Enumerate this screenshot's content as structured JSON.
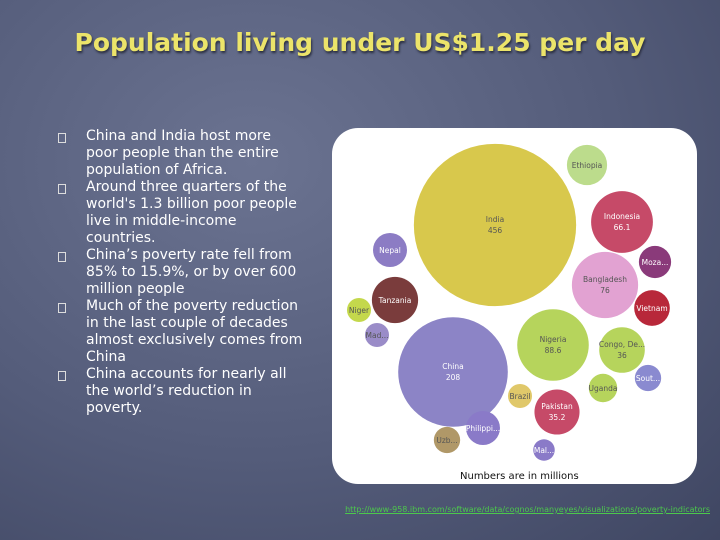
{
  "title": "Population living under US$1.25 per day",
  "bullets": [
    "China and India host more poor people than the entire population of Africa.",
    "Around three quarters of the world's 1.3 billion poor people live in middle-income countries.",
    "China’s poverty rate fell from 85% to 15.9%, or by over 600 million people",
    "Much of the poverty reduction in the last couple of decades almost exclusively comes from China",
    "China accounts for nearly all the world’s reduction in poverty."
  ],
  "chart": {
    "type": "bubble",
    "bubbles": [
      {
        "label": "India",
        "value": 456,
        "color": "#d8c84c"
      },
      {
        "label": "China",
        "value": 208,
        "color": "#8c84c6"
      },
      {
        "label": "Nigeria",
        "value": 88.6,
        "color": "#b6d45c"
      },
      {
        "label": "Bangladesh",
        "value": 76,
        "color": "#e2a2d2"
      },
      {
        "label": "Indonesia",
        "value": 66.1,
        "color": "#c64a68"
      },
      {
        "label": "Congo, De...",
        "value": 36,
        "color": "#b6d45c"
      },
      {
        "label": "Pakistan",
        "value": 35.2,
        "color": "#c64a68"
      }
    ],
    "other_bubbles": [
      {
        "label": "Ethiopia",
        "value": 28,
        "color": "#bcdc8c"
      },
      {
        "label": "Nepal",
        "value": 20,
        "color": "#8c7cc4"
      },
      {
        "label": "Tanzania",
        "value": 37,
        "color": "#7a3c3c"
      },
      {
        "label": "Niger",
        "value": 10,
        "color": "#c4d84c"
      },
      {
        "label": "Mad...",
        "value": 10,
        "color": "#9a8cc8"
      },
      {
        "label": "Vietnam",
        "value": 22,
        "color": "#b8283a"
      },
      {
        "label": "Moza...",
        "value": 18,
        "color": "#8a3a7a"
      },
      {
        "label": "Sout...",
        "value": 12,
        "color": "#8a8ad0"
      },
      {
        "label": "Uganda",
        "value": 14,
        "color": "#b6d45c"
      },
      {
        "label": "Brazil",
        "value": 10,
        "color": "#e0c86a"
      },
      {
        "label": "Philippi...",
        "value": 20,
        "color": "#8a7ac8"
      },
      {
        "label": "Uzb...",
        "value": 12,
        "color": "#b09868"
      },
      {
        "label": "Mal...",
        "value": 8,
        "color": "#8a7ac8"
      }
    ],
    "caption": "Numbers are in millions"
  },
  "source": "http://www-958.ibm.com/software/data/cognos/manyeyes/visualizations/poverty-indicators"
}
